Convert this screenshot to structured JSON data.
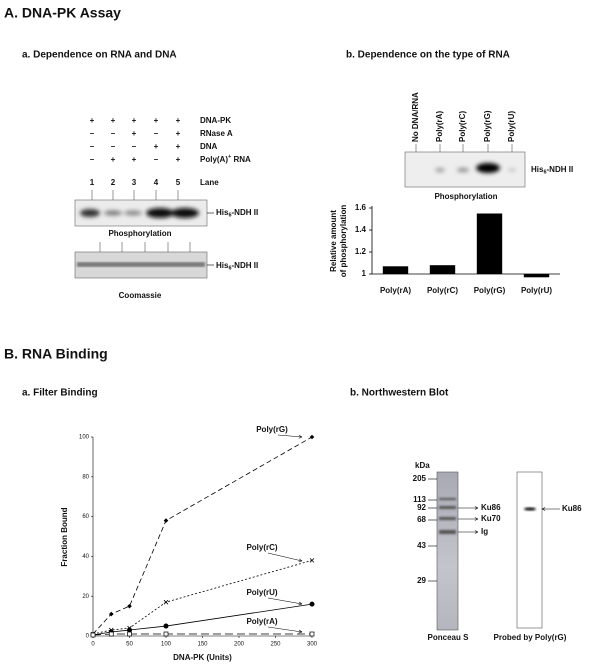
{
  "section_a": {
    "title": "A. DNA-PK Assay",
    "panel_a": {
      "title": "a. Dependence on RNA and DNA",
      "conditions": [
        {
          "label": [
            "DNA-PK"
          ],
          "signs": [
            "+",
            "+",
            "+",
            "+",
            "+"
          ]
        },
        {
          "label": [
            "RNase A"
          ],
          "signs": [
            "–",
            "–",
            "+",
            "–",
            "+"
          ]
        },
        {
          "label": [
            "DNA"
          ],
          "signs": [
            "–",
            "–",
            "–",
            "+",
            "+"
          ]
        },
        {
          "label": [
            "Poly(A)",
            "+",
            " RNA"
          ],
          "signs": [
            "–",
            "+",
            "+",
            "–",
            "+"
          ]
        }
      ],
      "lane_title": "Lane",
      "lanes": [
        "1",
        "2",
        "3",
        "4",
        "5"
      ],
      "band_label": [
        "His",
        "6",
        "-NDH II"
      ],
      "gel1_caption": "Phosphorylation",
      "gel2_caption": "Coomassie"
    },
    "panel_b": {
      "title": "b. Dependence on the type of RNA",
      "lanes": [
        "No DNA/RNA",
        "Poly(rA)",
        "Poly(rC)",
        "Poly(rG)",
        "Poly(rU)"
      ],
      "band_label": [
        "His",
        "6",
        "-NDH II"
      ],
      "gel_caption": "Phosphorylation"
    }
  },
  "section_b": {
    "title": "B. RNA Binding",
    "panel_a": {
      "title": "a. Filter Binding"
    },
    "panel_b": {
      "title": "b. Northwestern Blot",
      "unit": "kDa",
      "markers": [
        205,
        113,
        92,
        68,
        43,
        29
      ],
      "bands": [
        "Ku86",
        "Ku70",
        "Ig"
      ],
      "probe_band": "Ku86",
      "lane1_caption": "Ponceau S",
      "lane2_caption": "Probed by Poly(rG)"
    }
  },
  "chart_data": [
    {
      "type": "bar",
      "ylabel": [
        "Relative amount",
        "of phosphorylation"
      ],
      "categories": [
        "Poly(rA)",
        "Poly(rC)",
        "Poly(rG)",
        "Poly(rU)"
      ],
      "values": [
        1.07,
        1.08,
        1.55,
        0.97
      ],
      "color": "#000000",
      "ylim": [
        1,
        1.6
      ],
      "yticks": [
        1,
        1.2,
        1.4,
        1.6
      ]
    },
    {
      "type": "line",
      "xlabel": "DNA-PK (Units)",
      "ylabel": "Fraction Bound",
      "x": [
        0,
        25,
        50,
        100,
        300
      ],
      "series": [
        {
          "name": "Poly(rG)",
          "color": "#000000",
          "dash": "5,3",
          "marker": "diamond",
          "values": [
            1,
            11,
            15,
            58,
            100
          ]
        },
        {
          "name": "Poly(rC)",
          "color": "#000000",
          "dash": "2,2",
          "marker": "cross",
          "values": [
            1,
            3,
            4,
            17,
            38
          ]
        },
        {
          "name": "Poly(rU)",
          "color": "#000000",
          "dash": "none",
          "marker": "circle",
          "values": [
            0.5,
            2,
            3,
            5,
            16
          ]
        },
        {
          "name": "Poly(rA)",
          "color": "#000000",
          "dash": "8,4",
          "marker": "square",
          "values": [
            0.5,
            1,
            1,
            1,
            1
          ]
        }
      ],
      "xlim": [
        0,
        300
      ],
      "xticks": [
        0,
        50,
        100,
        150,
        200,
        250,
        300
      ],
      "ylim": [
        0,
        100
      ],
      "yticks": [
        0,
        20,
        40,
        60,
        80,
        100
      ]
    }
  ]
}
